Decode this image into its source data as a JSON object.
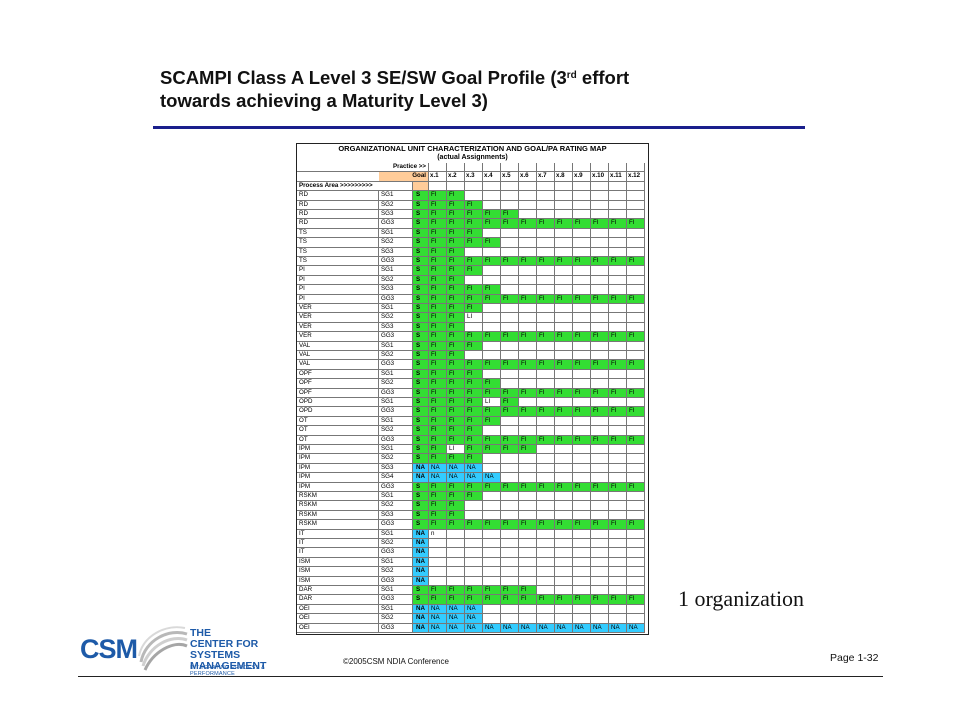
{
  "slide": {
    "title_line1_pre": "SCAMPI Class A Level 3 SE/SW Goal Profile (3",
    "title_sup": "rd",
    "title_line1_post": " effort",
    "title_line2": "towards achieving a Maturity Level 3)",
    "side_label": "1 organization",
    "footer_copyright": "©2005CSM   NDIA Conference",
    "page_number": "Page 1-32",
    "logo_abbrev": "CSM",
    "logo_line1": "THE",
    "logo_line2": "CENTER FOR",
    "logo_line3": "SYSTEMS MANAGEMENT",
    "logo_tagline": "INTEGRATING PROCESS & PERFORMANCE"
  },
  "table": {
    "title": "ORGANIZATIONAL UNIT CHARACTERIZATION AND GOAL/PA RATING MAP",
    "subtitle": "(actual Assignments)",
    "practice_label": "Practice >>",
    "goal_label": "Goal",
    "process_area_label": "Process Area >>>>>>>>>",
    "practice_columns": [
      "x.1",
      "x.2",
      "x.3",
      "x.4",
      "x.5",
      "x.6",
      "x.7",
      "x.8",
      "x.9",
      "x.10",
      "x.11",
      "x.12"
    ],
    "rows": [
      {
        "pa": "RD",
        "goal": "SG1",
        "rating": "S",
        "cells": [
          "FI",
          "FI"
        ]
      },
      {
        "pa": "RD",
        "goal": "SG2",
        "rating": "S",
        "cells": [
          "FI",
          "FI",
          "FI"
        ]
      },
      {
        "pa": "RD",
        "goal": "SG3",
        "rating": "S",
        "cells": [
          "FI",
          "FI",
          "FI",
          "FI",
          "FI"
        ]
      },
      {
        "pa": "RD",
        "goal": "GG3",
        "rating": "S",
        "cells": [
          "FI",
          "FI",
          "FI",
          "FI",
          "FI",
          "FI",
          "FI",
          "FI",
          "FI",
          "FI",
          "FI",
          "FI"
        ]
      },
      {
        "pa": "TS",
        "goal": "SG1",
        "rating": "S",
        "cells": [
          "FI",
          "FI",
          "FI"
        ]
      },
      {
        "pa": "TS",
        "goal": "SG2",
        "rating": "S",
        "cells": [
          "FI",
          "FI",
          "FI",
          "FI"
        ]
      },
      {
        "pa": "TS",
        "goal": "SG3",
        "rating": "S",
        "cells": [
          "FI",
          "FI"
        ]
      },
      {
        "pa": "TS",
        "goal": "GG3",
        "rating": "S",
        "cells": [
          "FI",
          "FI",
          "FI",
          "FI",
          "FI",
          "FI",
          "FI",
          "FI",
          "FI",
          "FI",
          "FI",
          "FI"
        ]
      },
      {
        "pa": "PI",
        "goal": "SG1",
        "rating": "S",
        "cells": [
          "FI",
          "FI",
          "FI"
        ]
      },
      {
        "pa": "PI",
        "goal": "SG2",
        "rating": "S",
        "cells": [
          "FI",
          "FI"
        ]
      },
      {
        "pa": "PI",
        "goal": "SG3",
        "rating": "S",
        "cells": [
          "FI",
          "FI",
          "FI",
          "FI"
        ]
      },
      {
        "pa": "PI",
        "goal": "GG3",
        "rating": "S",
        "cells": [
          "FI",
          "FI",
          "FI",
          "FI",
          "FI",
          "FI",
          "FI",
          "FI",
          "FI",
          "FI",
          "FI",
          "FI"
        ]
      },
      {
        "pa": "VER",
        "goal": "SG1",
        "rating": "S",
        "cells": [
          "FI",
          "FI",
          "FI"
        ]
      },
      {
        "pa": "VER",
        "goal": "SG2",
        "rating": "S",
        "cells": [
          "FI",
          "FI",
          "LI"
        ]
      },
      {
        "pa": "VER",
        "goal": "SG3",
        "rating": "S",
        "cells": [
          "FI",
          "FI"
        ]
      },
      {
        "pa": "VER",
        "goal": "GG3",
        "rating": "S",
        "cells": [
          "FI",
          "FI",
          "FI",
          "FI",
          "FI",
          "FI",
          "FI",
          "FI",
          "FI",
          "FI",
          "FI",
          "FI"
        ]
      },
      {
        "pa": "VAL",
        "goal": "SG1",
        "rating": "S",
        "cells": [
          "FI",
          "FI",
          "FI"
        ]
      },
      {
        "pa": "VAL",
        "goal": "SG2",
        "rating": "S",
        "cells": [
          "FI",
          "FI"
        ]
      },
      {
        "pa": "VAL",
        "goal": "GG3",
        "rating": "S",
        "cells": [
          "FI",
          "FI",
          "FI",
          "FI",
          "FI",
          "FI",
          "FI",
          "FI",
          "FI",
          "FI",
          "FI",
          "FI"
        ]
      },
      {
        "pa": "OPF",
        "goal": "SG1",
        "rating": "S",
        "cells": [
          "FI",
          "FI",
          "FI"
        ]
      },
      {
        "pa": "OPF",
        "goal": "SG2",
        "rating": "S",
        "cells": [
          "FI",
          "FI",
          "FI",
          "FI"
        ]
      },
      {
        "pa": "OPF",
        "goal": "GG3",
        "rating": "S",
        "cells": [
          "FI",
          "FI",
          "FI",
          "FI",
          "FI",
          "FI",
          "FI",
          "FI",
          "FI",
          "FI",
          "FI",
          "FI"
        ]
      },
      {
        "pa": "OPD",
        "goal": "SG1",
        "rating": "S",
        "cells": [
          "FI",
          "FI",
          "FI",
          "LI",
          "FI"
        ]
      },
      {
        "pa": "OPD",
        "goal": "GG3",
        "rating": "S",
        "cells": [
          "FI",
          "FI",
          "FI",
          "FI",
          "FI",
          "FI",
          "FI",
          "FI",
          "FI",
          "FI",
          "FI",
          "FI"
        ]
      },
      {
        "pa": "OT",
        "goal": "SG1",
        "rating": "S",
        "cells": [
          "FI",
          "FI",
          "FI",
          "FI"
        ]
      },
      {
        "pa": "OT",
        "goal": "SG2",
        "rating": "S",
        "cells": [
          "FI",
          "FI",
          "FI"
        ]
      },
      {
        "pa": "OT",
        "goal": "GG3",
        "rating": "S",
        "cells": [
          "FI",
          "FI",
          "FI",
          "FI",
          "FI",
          "FI",
          "FI",
          "FI",
          "FI",
          "FI",
          "FI",
          "FI"
        ]
      },
      {
        "pa": "IPM",
        "goal": "SG1",
        "rating": "S",
        "cells": [
          "FI",
          "LI",
          "FI",
          "FI",
          "FI",
          "FI"
        ]
      },
      {
        "pa": "IPM",
        "goal": "SG2",
        "rating": "S",
        "cells": [
          "FI",
          "FI",
          "FI"
        ]
      },
      {
        "pa": "IPM",
        "goal": "SG3",
        "rating": "NA",
        "cells": [
          "NA",
          "NA",
          "NA"
        ]
      },
      {
        "pa": "IPM",
        "goal": "SG4",
        "rating": "NA",
        "cells": [
          "NA",
          "NA",
          "NA",
          "NA"
        ]
      },
      {
        "pa": "IPM",
        "goal": "GG3",
        "rating": "S",
        "cells": [
          "FI",
          "FI",
          "FI",
          "FI",
          "FI",
          "FI",
          "FI",
          "FI",
          "FI",
          "FI",
          "FI",
          "FI"
        ]
      },
      {
        "pa": "RSKM",
        "goal": "SG1",
        "rating": "S",
        "cells": [
          "FI",
          "FI",
          "FI"
        ]
      },
      {
        "pa": "RSKM",
        "goal": "SG2",
        "rating": "S",
        "cells": [
          "FI",
          "FI"
        ]
      },
      {
        "pa": "RSKM",
        "goal": "SG3",
        "rating": "S",
        "cells": [
          "FI",
          "FI"
        ]
      },
      {
        "pa": "RSKM",
        "goal": "GG3",
        "rating": "S",
        "cells": [
          "FI",
          "FI",
          "FI",
          "FI",
          "FI",
          "FI",
          "FI",
          "FI",
          "FI",
          "FI",
          "FI",
          "FI"
        ]
      },
      {
        "pa": "IT",
        "goal": "SG1",
        "rating": "NA",
        "cells": [
          "n"
        ]
      },
      {
        "pa": "IT",
        "goal": "SG2",
        "rating": "NA",
        "cells": []
      },
      {
        "pa": "IT",
        "goal": "GG3",
        "rating": "NA",
        "cells": []
      },
      {
        "pa": "ISM",
        "goal": "SG1",
        "rating": "NA",
        "cells": []
      },
      {
        "pa": "ISM",
        "goal": "SG2",
        "rating": "NA",
        "cells": []
      },
      {
        "pa": "ISM",
        "goal": "GG3",
        "rating": "NA",
        "cells": []
      },
      {
        "pa": "DAR",
        "goal": "SG1",
        "rating": "S",
        "cells": [
          "FI",
          "FI",
          "FI",
          "FI",
          "FI",
          "FI"
        ]
      },
      {
        "pa": "DAR",
        "goal": "GG3",
        "rating": "S",
        "cells": [
          "FI",
          "FI",
          "FI",
          "FI",
          "FI",
          "FI",
          "FI",
          "FI",
          "FI",
          "FI",
          "FI",
          "FI"
        ]
      },
      {
        "pa": "OEI",
        "goal": "SG1",
        "rating": "NA",
        "cells": [
          "NA",
          "NA",
          "NA"
        ]
      },
      {
        "pa": "OEI",
        "goal": "SG2",
        "rating": "NA",
        "cells": [
          "NA",
          "NA",
          "NA"
        ]
      },
      {
        "pa": "OEI",
        "goal": "GG3",
        "rating": "NA",
        "cells": [
          "NA",
          "NA",
          "NA",
          "NA",
          "NA",
          "NA",
          "NA",
          "NA",
          "NA",
          "NA",
          "NA",
          "NA"
        ]
      }
    ]
  },
  "colors": {
    "title_rule": "#1a1f8c",
    "fully_implemented": "#33dd33",
    "not_applicable": "#33ccff",
    "goal_header": "#ffcc99",
    "logo_blue": "#1d5aa8"
  }
}
